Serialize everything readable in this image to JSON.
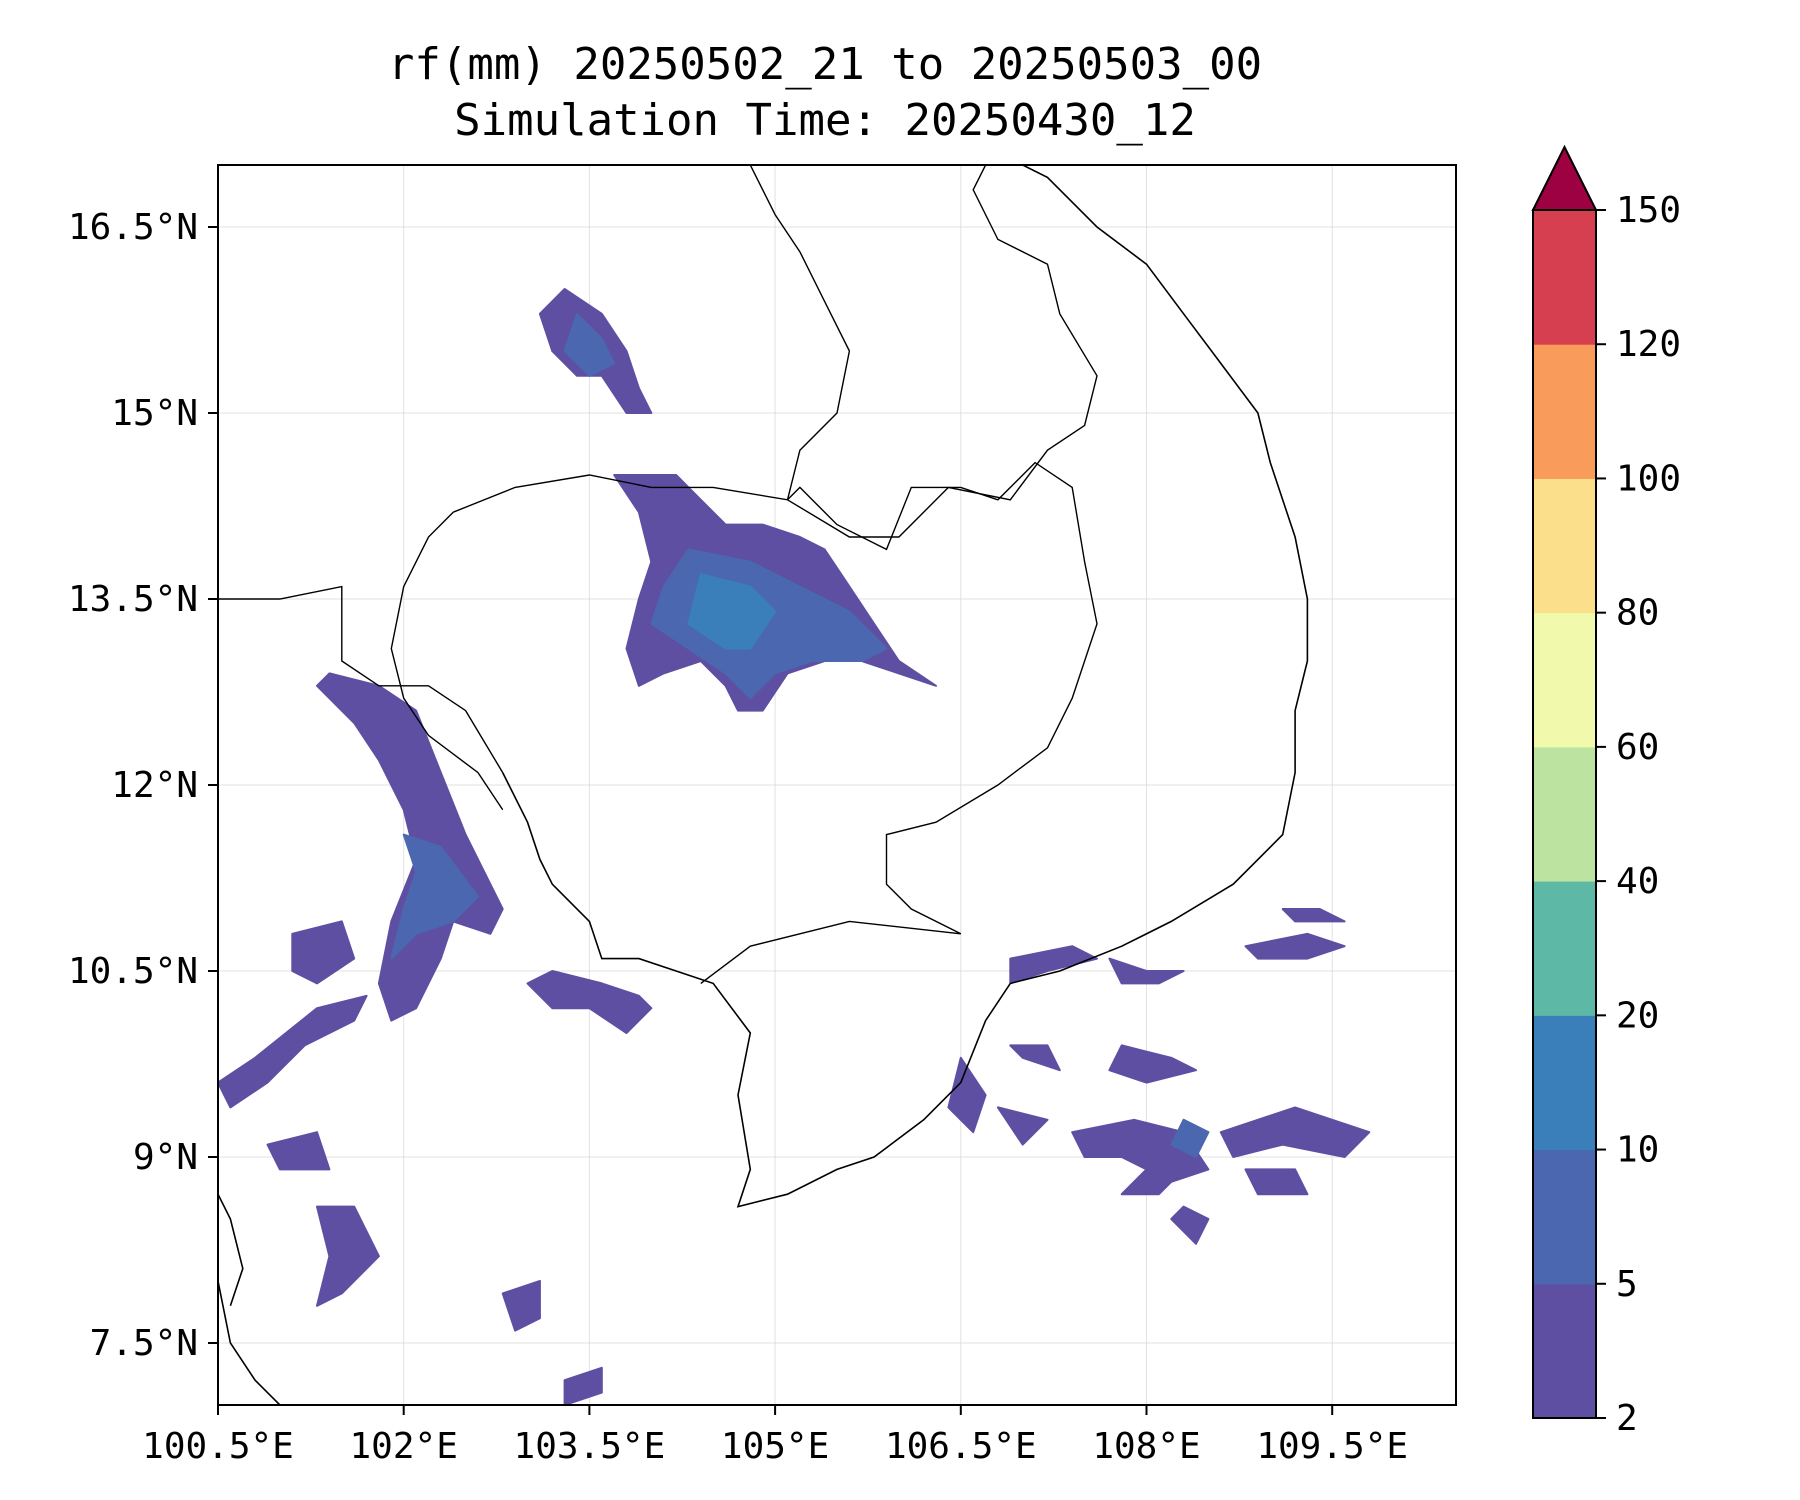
{
  "title": {
    "line1": "rf(mm) 20250502_21 to 20250503_00",
    "line2": "Simulation Time: 20250430_12"
  },
  "map": {
    "lon_range": [
      100.5,
      110.5
    ],
    "lat_range": [
      7.0,
      17.0
    ],
    "x_ticks": [
      {
        "value": 100.5,
        "label": "100.5°E"
      },
      {
        "value": 102.0,
        "label": "102°E"
      },
      {
        "value": 103.5,
        "label": "103.5°E"
      },
      {
        "value": 105.0,
        "label": "105°E"
      },
      {
        "value": 106.5,
        "label": "106.5°E"
      },
      {
        "value": 108.0,
        "label": "108°E"
      },
      {
        "value": 109.5,
        "label": "109.5°E"
      }
    ],
    "y_ticks": [
      {
        "value": 16.5,
        "label": "16.5°N"
      },
      {
        "value": 15.0,
        "label": "15°N"
      },
      {
        "value": 13.5,
        "label": "13.5°N"
      },
      {
        "value": 12.0,
        "label": "12°N"
      },
      {
        "value": 10.5,
        "label": "10.5°N"
      },
      {
        "value": 9.0,
        "label": "9°N"
      },
      {
        "value": 7.5,
        "label": "7.5°N"
      }
    ],
    "grid": true
  },
  "colorbar": {
    "extend": "max",
    "extend_color": "#9e0142",
    "levels": [
      {
        "label": "2",
        "value": 2
      },
      {
        "label": "5",
        "value": 5
      },
      {
        "label": "10",
        "value": 10
      },
      {
        "label": "20",
        "value": 20
      },
      {
        "label": "40",
        "value": 40
      },
      {
        "label": "60",
        "value": 60
      },
      {
        "label": "80",
        "value": 80
      },
      {
        "label": "100",
        "value": 100
      },
      {
        "label": "120",
        "value": 120
      },
      {
        "label": "150",
        "value": 150
      }
    ],
    "colors": [
      "#5e4fa2",
      "#4a67b0",
      "#3a7fb9",
      "#5db9a6",
      "#bde3a1",
      "#f1f9ac",
      "#fcdf8a",
      "#f99b5a",
      "#d63f4f"
    ]
  },
  "rain_areas": [
    {
      "level": 0,
      "points": [
        [
          104.9,
          14.1
        ],
        [
          105.2,
          14.0
        ],
        [
          105.4,
          13.9
        ],
        [
          105.6,
          13.6
        ],
        [
          105.8,
          13.3
        ],
        [
          106.0,
          13.0
        ],
        [
          106.3,
          12.8
        ],
        [
          106.0,
          12.9
        ],
        [
          105.7,
          13.0
        ],
        [
          105.4,
          13.0
        ],
        [
          105.1,
          12.9
        ],
        [
          104.9,
          12.6
        ],
        [
          104.7,
          12.6
        ],
        [
          104.6,
          12.8
        ],
        [
          104.4,
          13.0
        ],
        [
          104.1,
          12.9
        ],
        [
          103.9,
          12.8
        ],
        [
          103.8,
          13.1
        ],
        [
          103.9,
          13.5
        ],
        [
          104.0,
          13.8
        ],
        [
          103.9,
          14.2
        ],
        [
          103.7,
          14.5
        ],
        [
          104.2,
          14.5
        ],
        [
          104.4,
          14.3
        ],
        [
          104.6,
          14.1
        ]
      ]
    },
    {
      "level": 1,
      "points": [
        [
          104.3,
          13.9
        ],
        [
          104.8,
          13.8
        ],
        [
          105.2,
          13.6
        ],
        [
          105.6,
          13.4
        ],
        [
          105.9,
          13.1
        ],
        [
          105.7,
          13.0
        ],
        [
          105.3,
          13.0
        ],
        [
          105.0,
          12.9
        ],
        [
          104.8,
          12.7
        ],
        [
          104.6,
          12.9
        ],
        [
          104.3,
          13.1
        ],
        [
          104.0,
          13.3
        ],
        [
          104.1,
          13.6
        ]
      ]
    },
    {
      "level": 2,
      "points": [
        [
          104.4,
          13.7
        ],
        [
          104.8,
          13.6
        ],
        [
          105.0,
          13.4
        ],
        [
          104.8,
          13.1
        ],
        [
          104.6,
          13.1
        ],
        [
          104.3,
          13.3
        ]
      ]
    },
    {
      "level": 0,
      "points": [
        [
          103.3,
          16.0
        ],
        [
          103.6,
          15.8
        ],
        [
          103.8,
          15.5
        ],
        [
          103.9,
          15.2
        ],
        [
          104.0,
          15.0
        ],
        [
          103.8,
          15.0
        ],
        [
          103.6,
          15.3
        ],
        [
          103.4,
          15.3
        ],
        [
          103.2,
          15.5
        ],
        [
          103.1,
          15.8
        ]
      ]
    },
    {
      "level": 1,
      "points": [
        [
          103.4,
          15.8
        ],
        [
          103.6,
          15.6
        ],
        [
          103.7,
          15.4
        ],
        [
          103.5,
          15.3
        ],
        [
          103.3,
          15.5
        ]
      ]
    },
    {
      "level": 0,
      "points": [
        [
          101.4,
          12.9
        ],
        [
          101.8,
          12.8
        ],
        [
          102.1,
          12.6
        ],
        [
          102.3,
          12.1
        ],
        [
          102.5,
          11.6
        ],
        [
          102.8,
          11.0
        ],
        [
          102.7,
          10.8
        ],
        [
          102.4,
          10.9
        ],
        [
          102.3,
          10.6
        ],
        [
          102.1,
          10.2
        ],
        [
          101.9,
          10.1
        ],
        [
          101.8,
          10.4
        ],
        [
          101.9,
          10.9
        ],
        [
          102.1,
          11.4
        ],
        [
          102.0,
          11.8
        ],
        [
          101.8,
          12.2
        ],
        [
          101.6,
          12.5
        ],
        [
          101.3,
          12.8
        ]
      ]
    },
    {
      "level": 1,
      "points": [
        [
          102.0,
          11.6
        ],
        [
          102.3,
          11.5
        ],
        [
          102.6,
          11.1
        ],
        [
          102.4,
          10.9
        ],
        [
          102.1,
          10.8
        ],
        [
          101.9,
          10.6
        ],
        [
          102.0,
          11.0
        ],
        [
          102.1,
          11.3
        ]
      ]
    },
    {
      "level": 0,
      "points": [
        [
          103.2,
          10.5
        ],
        [
          103.6,
          10.4
        ],
        [
          103.9,
          10.3
        ],
        [
          104.0,
          10.2
        ],
        [
          103.8,
          10.0
        ],
        [
          103.5,
          10.2
        ],
        [
          103.2,
          10.2
        ],
        [
          103.0,
          10.4
        ]
      ]
    },
    {
      "level": 0,
      "points": [
        [
          100.5,
          9.6
        ],
        [
          100.8,
          9.8
        ],
        [
          101.3,
          10.2
        ],
        [
          101.7,
          10.3
        ],
        [
          101.6,
          10.1
        ],
        [
          101.2,
          9.9
        ],
        [
          100.9,
          9.6
        ],
        [
          100.6,
          9.4
        ]
      ]
    },
    {
      "level": 0,
      "points": [
        [
          101.1,
          10.8
        ],
        [
          101.5,
          10.9
        ],
        [
          101.6,
          10.6
        ],
        [
          101.3,
          10.4
        ],
        [
          101.1,
          10.5
        ]
      ]
    },
    {
      "level": 0,
      "points": [
        [
          100.9,
          9.1
        ],
        [
          101.3,
          9.2
        ],
        [
          101.4,
          8.9
        ],
        [
          101.0,
          8.9
        ]
      ]
    },
    {
      "level": 0,
      "points": [
        [
          101.3,
          8.6
        ],
        [
          101.6,
          8.6
        ],
        [
          101.8,
          8.2
        ],
        [
          101.5,
          7.9
        ],
        [
          101.3,
          7.8
        ],
        [
          101.4,
          8.2
        ]
      ]
    },
    {
      "level": 0,
      "points": [
        [
          102.8,
          7.9
        ],
        [
          103.1,
          8.0
        ],
        [
          103.1,
          7.7
        ],
        [
          102.9,
          7.6
        ]
      ]
    },
    {
      "level": 0,
      "points": [
        [
          103.3,
          7.2
        ],
        [
          103.6,
          7.3
        ],
        [
          103.6,
          7.1
        ],
        [
          103.3,
          7.0
        ]
      ]
    },
    {
      "level": 0,
      "points": [
        [
          106.9,
          10.6
        ],
        [
          107.4,
          10.7
        ],
        [
          107.6,
          10.6
        ],
        [
          107.2,
          10.5
        ],
        [
          106.9,
          10.4
        ]
      ]
    },
    {
      "level": 0,
      "points": [
        [
          107.7,
          10.6
        ],
        [
          108.0,
          10.5
        ],
        [
          108.3,
          10.5
        ],
        [
          108.1,
          10.4
        ],
        [
          107.8,
          10.4
        ]
      ]
    },
    {
      "level": 0,
      "points": [
        [
          108.8,
          10.7
        ],
        [
          109.3,
          10.8
        ],
        [
          109.6,
          10.7
        ],
        [
          109.3,
          10.6
        ],
        [
          108.9,
          10.6
        ]
      ]
    },
    {
      "level": 0,
      "points": [
        [
          107.4,
          9.2
        ],
        [
          107.9,
          9.3
        ],
        [
          108.3,
          9.2
        ],
        [
          108.5,
          8.9
        ],
        [
          108.2,
          8.8
        ],
        [
          107.8,
          9.0
        ],
        [
          107.5,
          9.0
        ]
      ]
    },
    {
      "level": 1,
      "points": [
        [
          108.3,
          9.3
        ],
        [
          108.5,
          9.2
        ],
        [
          108.4,
          9.0
        ],
        [
          108.2,
          9.1
        ]
      ]
    },
    {
      "level": 0,
      "points": [
        [
          108.6,
          9.2
        ],
        [
          109.2,
          9.4
        ],
        [
          109.8,
          9.2
        ],
        [
          109.6,
          9.0
        ],
        [
          109.1,
          9.1
        ],
        [
          108.7,
          9.0
        ]
      ]
    },
    {
      "level": 0,
      "points": [
        [
          107.8,
          9.9
        ],
        [
          108.2,
          9.8
        ],
        [
          108.4,
          9.7
        ],
        [
          108.0,
          9.6
        ],
        [
          107.7,
          9.7
        ]
      ]
    },
    {
      "level": 0,
      "points": [
        [
          106.5,
          9.8
        ],
        [
          106.7,
          9.5
        ],
        [
          106.6,
          9.2
        ],
        [
          106.4,
          9.4
        ]
      ]
    },
    {
      "level": 0,
      "points": [
        [
          106.8,
          9.4
        ],
        [
          107.2,
          9.3
        ],
        [
          107.0,
          9.1
        ]
      ]
    },
    {
      "level": 0,
      "points": [
        [
          108.8,
          8.9
        ],
        [
          109.2,
          8.9
        ],
        [
          109.3,
          8.7
        ],
        [
          108.9,
          8.7
        ]
      ]
    },
    {
      "level": 0,
      "points": [
        [
          109.1,
          11.0
        ],
        [
          109.4,
          11.0
        ],
        [
          109.6,
          10.9
        ],
        [
          109.2,
          10.9
        ]
      ]
    },
    {
      "level": 0,
      "points": [
        [
          106.9,
          9.9
        ],
        [
          107.2,
          9.9
        ],
        [
          107.3,
          9.7
        ],
        [
          107.0,
          9.8
        ]
      ]
    },
    {
      "level": 0,
      "points": [
        [
          108.3,
          8.6
        ],
        [
          108.5,
          8.5
        ],
        [
          108.4,
          8.3
        ],
        [
          108.2,
          8.5
        ]
      ]
    },
    {
      "level": 0,
      "points": [
        [
          108.0,
          8.9
        ],
        [
          108.3,
          8.9
        ],
        [
          108.1,
          8.7
        ],
        [
          107.8,
          8.7
        ]
      ]
    }
  ],
  "borders": [
    {
      "points": [
        [
          102.4,
          14.2
        ],
        [
          102.9,
          14.4
        ],
        [
          103.5,
          14.5
        ],
        [
          104.0,
          14.4
        ],
        [
          104.5,
          14.4
        ],
        [
          105.1,
          14.3
        ],
        [
          105.2,
          14.4
        ],
        [
          105.5,
          14.1
        ],
        [
          105.9,
          13.9
        ],
        [
          106.1,
          14.4
        ],
        [
          106.5,
          14.4
        ],
        [
          106.8,
          14.3
        ],
        [
          107.1,
          14.6
        ],
        [
          107.4,
          14.4
        ],
        [
          107.5,
          13.8
        ],
        [
          107.6,
          13.3
        ],
        [
          107.4,
          12.7
        ],
        [
          107.2,
          12.3
        ],
        [
          106.8,
          12.0
        ],
        [
          106.3,
          11.7
        ],
        [
          105.9,
          11.6
        ],
        [
          105.9,
          11.2
        ],
        [
          106.1,
          11.0
        ],
        [
          106.5,
          10.8
        ],
        [
          105.6,
          10.9
        ],
        [
          104.8,
          10.7
        ],
        [
          104.4,
          10.4
        ]
      ]
    },
    {
      "points": [
        [
          102.4,
          14.2
        ],
        [
          102.2,
          14.0
        ],
        [
          102.0,
          13.6
        ],
        [
          101.9,
          13.1
        ],
        [
          102.0,
          12.7
        ],
        [
          102.2,
          12.4
        ],
        [
          102.6,
          12.1
        ],
        [
          102.8,
          11.8
        ]
      ]
    },
    {
      "points": [
        [
          105.1,
          14.3
        ],
        [
          105.2,
          14.7
        ],
        [
          105.5,
          15.0
        ],
        [
          105.6,
          15.5
        ],
        [
          105.4,
          15.9
        ],
        [
          105.2,
          16.3
        ],
        [
          105.0,
          16.6
        ],
        [
          104.8,
          17.0
        ]
      ]
    },
    {
      "points": [
        [
          105.1,
          14.3
        ],
        [
          105.6,
          14.0
        ],
        [
          106.0,
          14.0
        ],
        [
          106.4,
          14.4
        ],
        [
          106.9,
          14.3
        ],
        [
          107.2,
          14.7
        ],
        [
          107.5,
          14.9
        ],
        [
          107.6,
          15.3
        ],
        [
          107.3,
          15.8
        ],
        [
          107.2,
          16.2
        ],
        [
          106.8,
          16.4
        ],
        [
          106.6,
          16.8
        ],
        [
          106.7,
          17.0
        ]
      ]
    },
    {
      "points": [
        [
          100.5,
          13.5
        ],
        [
          101.0,
          13.5
        ],
        [
          101.5,
          13.6
        ],
        [
          101.5,
          13.3
        ],
        [
          101.5,
          13.0
        ],
        [
          101.8,
          12.8
        ],
        [
          102.2,
          12.8
        ],
        [
          102.5,
          12.6
        ],
        [
          102.8,
          12.1
        ]
      ]
    }
  ],
  "coastlines": [
    {
      "points": [
        [
          102.8,
          12.1
        ],
        [
          103.0,
          11.7
        ],
        [
          103.1,
          11.4
        ],
        [
          103.2,
          11.2
        ],
        [
          103.5,
          10.9
        ],
        [
          103.6,
          10.6
        ],
        [
          103.9,
          10.6
        ],
        [
          104.2,
          10.5
        ],
        [
          104.5,
          10.4
        ],
        [
          104.8,
          10.0
        ],
        [
          104.7,
          9.5
        ],
        [
          104.8,
          8.9
        ],
        [
          104.7,
          8.6
        ],
        [
          105.1,
          8.7
        ],
        [
          105.5,
          8.9
        ],
        [
          105.8,
          9.0
        ],
        [
          106.2,
          9.3
        ],
        [
          106.5,
          9.6
        ],
        [
          106.7,
          10.1
        ],
        [
          106.9,
          10.4
        ],
        [
          107.3,
          10.5
        ],
        [
          107.8,
          10.7
        ],
        [
          108.2,
          10.9
        ],
        [
          108.7,
          11.2
        ],
        [
          109.1,
          11.6
        ],
        [
          109.2,
          12.1
        ],
        [
          109.2,
          12.6
        ],
        [
          109.3,
          13.0
        ],
        [
          109.3,
          13.5
        ],
        [
          109.2,
          14.0
        ],
        [
          109.0,
          14.6
        ],
        [
          108.9,
          15.0
        ],
        [
          108.6,
          15.4
        ],
        [
          108.3,
          15.8
        ],
        [
          108.0,
          16.2
        ],
        [
          107.6,
          16.5
        ],
        [
          107.2,
          16.9
        ],
        [
          107.0,
          17.0
        ]
      ]
    },
    {
      "points": [
        [
          100.5,
          8.0
        ],
        [
          100.6,
          7.5
        ],
        [
          100.8,
          7.2
        ],
        [
          101.0,
          7.0
        ]
      ]
    },
    {
      "points": [
        [
          100.5,
          8.7
        ],
        [
          100.6,
          8.5
        ],
        [
          100.7,
          8.1
        ],
        [
          100.6,
          7.8
        ]
      ]
    }
  ]
}
